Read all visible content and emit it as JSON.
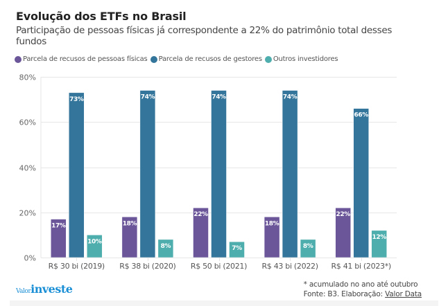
{
  "header": {
    "title": "Evolução dos ETFs no Brasil",
    "subtitle": "Participação de pessoas físicas já correspondente a 22% do patrimônio total desses fundos"
  },
  "legend": [
    {
      "label": "Parcela de recusos de pessoas físicas",
      "color": "#6a5699"
    },
    {
      "label": "Parcela de recusos de gestores",
      "color": "#34769b"
    },
    {
      "label": "Outros investidores",
      "color": "#4eaead"
    }
  ],
  "chart_data": {
    "type": "bar",
    "title": "Evolução dos ETFs no Brasil",
    "subtitle": "Participação de pessoas físicas já correspondente a 22% do patrimônio total desses fundos",
    "xlabel": "",
    "ylabel": "",
    "ylim": [
      0,
      80
    ],
    "yticks": [
      0,
      20,
      40,
      60,
      80
    ],
    "ytick_labels": [
      "0%",
      "20%",
      "40%",
      "60%",
      "80%"
    ],
    "grid": true,
    "legend_position": "top-left",
    "categories": [
      "R$ 30 bi (2019)",
      "R$ 38 bi (2020)",
      "R$ 50 bi (2021)",
      "R$ 43 bi (2022)",
      "R$ 41 bi (2023*)"
    ],
    "series": [
      {
        "name": "Parcela de recusos de pessoas físicas",
        "color": "#6a5699",
        "values": [
          17,
          18,
          22,
          18,
          22
        ],
        "labels": [
          "17%",
          "18%",
          "22%",
          "18%",
          "22%"
        ]
      },
      {
        "name": "Parcela de recusos de gestores",
        "color": "#34769b",
        "values": [
          73,
          74,
          74,
          74,
          66
        ],
        "labels": [
          "73%",
          "74%",
          "74%",
          "74%",
          "66%"
        ]
      },
      {
        "name": "Outros investidores",
        "color": "#4eaead",
        "values": [
          10,
          8,
          7,
          8,
          12
        ],
        "labels": [
          "10%",
          "8%",
          "7%",
          "8%",
          "12%"
        ]
      }
    ]
  },
  "footer": {
    "logo_valor": "Valor",
    "logo_investe": "investe",
    "note": "* acumulado no ano até outubro",
    "source_prefix": "Fonte: B3. Elaboração: ",
    "source_link": "Valor Data"
  }
}
